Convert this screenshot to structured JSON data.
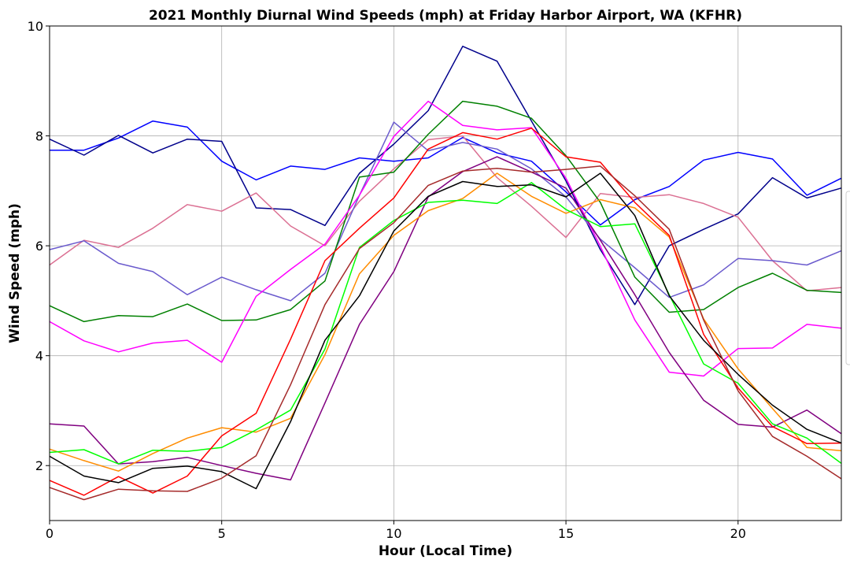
{
  "chart_data": {
    "type": "line",
    "title": "2021 Monthly Diurnal Wind Speeds (mph) at Friday Harbor Airport, WA (KFHR)",
    "xlabel": "Hour (Local Time)",
    "ylabel": "Wind Speed (mph)",
    "xlim": [
      0,
      23
    ],
    "ylim": [
      1,
      10
    ],
    "xticks": [
      0,
      5,
      10,
      15,
      20
    ],
    "yticks": [
      2,
      4,
      6,
      8,
      10
    ],
    "grid": true,
    "legend": "partially visible at right edge (entries cut off)",
    "x": [
      0,
      1,
      2,
      3,
      4,
      5,
      6,
      7,
      8,
      9,
      10,
      11,
      12,
      13,
      14,
      15,
      16,
      17,
      18,
      19,
      20,
      21,
      22,
      23
    ],
    "series": [
      {
        "color": "#0000ff",
        "values": [
          7.74,
          7.74,
          7.96,
          8.27,
          8.16,
          7.54,
          7.2,
          7.45,
          7.39,
          7.6,
          7.54,
          7.6,
          7.97,
          7.69,
          7.54,
          6.98,
          6.38,
          6.84,
          7.08,
          7.56,
          7.7,
          7.58,
          6.92,
          7.23
        ]
      },
      {
        "color": "#00008b",
        "values": [
          7.94,
          7.65,
          8.01,
          7.69,
          7.94,
          7.9,
          6.69,
          6.66,
          6.37,
          7.32,
          7.85,
          8.46,
          9.63,
          9.36,
          8.27,
          7.18,
          5.93,
          4.93,
          6.0,
          6.3,
          6.58,
          7.24,
          6.87,
          7.05
        ]
      },
      {
        "color": "#db7093",
        "values": [
          5.65,
          6.1,
          5.97,
          6.32,
          6.75,
          6.63,
          6.96,
          6.36,
          6.0,
          6.81,
          7.4,
          7.93,
          8.0,
          7.24,
          6.72,
          6.15,
          6.95,
          6.88,
          6.93,
          6.77,
          6.52,
          5.73,
          5.18,
          5.24
        ]
      },
      {
        "color": "#6a5acd",
        "values": [
          5.93,
          6.09,
          5.68,
          5.53,
          5.11,
          5.43,
          5.2,
          5.0,
          5.5,
          6.92,
          8.25,
          7.73,
          7.88,
          7.76,
          7.4,
          6.89,
          6.12,
          5.6,
          5.06,
          5.29,
          5.77,
          5.73,
          5.65,
          5.91
        ]
      },
      {
        "color": "#008000",
        "values": [
          4.91,
          4.62,
          4.73,
          4.71,
          4.94,
          4.64,
          4.65,
          4.84,
          5.36,
          7.25,
          7.34,
          8.03,
          8.63,
          8.54,
          8.32,
          7.64,
          6.79,
          5.43,
          4.79,
          4.84,
          5.24,
          5.5,
          5.19,
          5.15
        ]
      },
      {
        "color": "#ff00ff",
        "values": [
          4.62,
          4.27,
          4.07,
          4.23,
          4.28,
          3.88,
          5.08,
          5.57,
          6.03,
          6.92,
          7.99,
          8.63,
          8.19,
          8.11,
          8.15,
          7.23,
          5.99,
          4.65,
          3.7,
          3.63,
          4.13,
          4.14,
          4.57,
          4.5
        ]
      },
      {
        "color": "#800080",
        "values": [
          2.76,
          2.72,
          2.03,
          2.07,
          2.15,
          2.0,
          1.86,
          1.74,
          3.14,
          4.57,
          5.53,
          6.89,
          7.35,
          7.62,
          7.34,
          7.05,
          6.1,
          5.11,
          4.06,
          3.19,
          2.75,
          2.7,
          3.01,
          2.58
        ]
      },
      {
        "color": "#ff8c00",
        "values": [
          2.3,
          2.09,
          1.9,
          2.22,
          2.5,
          2.69,
          2.61,
          2.86,
          4.02,
          5.49,
          6.19,
          6.64,
          6.86,
          7.32,
          6.9,
          6.59,
          6.84,
          6.69,
          6.16,
          4.67,
          3.76,
          3.04,
          2.33,
          2.27
        ]
      },
      {
        "color": "#00ff00",
        "values": [
          2.24,
          2.29,
          2.03,
          2.28,
          2.26,
          2.33,
          2.65,
          3.01,
          4.12,
          5.97,
          6.46,
          6.79,
          6.83,
          6.77,
          7.15,
          6.66,
          6.35,
          6.4,
          5.11,
          3.85,
          3.5,
          2.76,
          2.5,
          2.04
        ]
      },
      {
        "color": "#ff0000",
        "values": [
          1.73,
          1.46,
          1.8,
          1.5,
          1.81,
          2.54,
          2.95,
          4.3,
          5.73,
          6.32,
          6.87,
          7.76,
          8.06,
          7.94,
          8.14,
          7.62,
          7.52,
          6.79,
          6.19,
          4.39,
          3.41,
          2.71,
          2.4,
          2.41
        ]
      },
      {
        "color": "#000000",
        "values": [
          2.17,
          1.81,
          1.69,
          1.95,
          1.99,
          1.89,
          1.58,
          2.8,
          4.28,
          5.09,
          6.27,
          6.9,
          7.17,
          7.08,
          7.11,
          6.89,
          7.32,
          6.55,
          5.09,
          4.28,
          3.66,
          3.1,
          2.66,
          2.41
        ]
      },
      {
        "color": "#a52a2a",
        "values": [
          1.6,
          1.38,
          1.57,
          1.54,
          1.53,
          1.77,
          2.18,
          3.47,
          4.93,
          5.95,
          6.42,
          7.1,
          7.36,
          7.41,
          7.34,
          7.39,
          7.45,
          6.91,
          6.3,
          4.65,
          3.36,
          2.53,
          2.17,
          1.76
        ]
      }
    ]
  }
}
